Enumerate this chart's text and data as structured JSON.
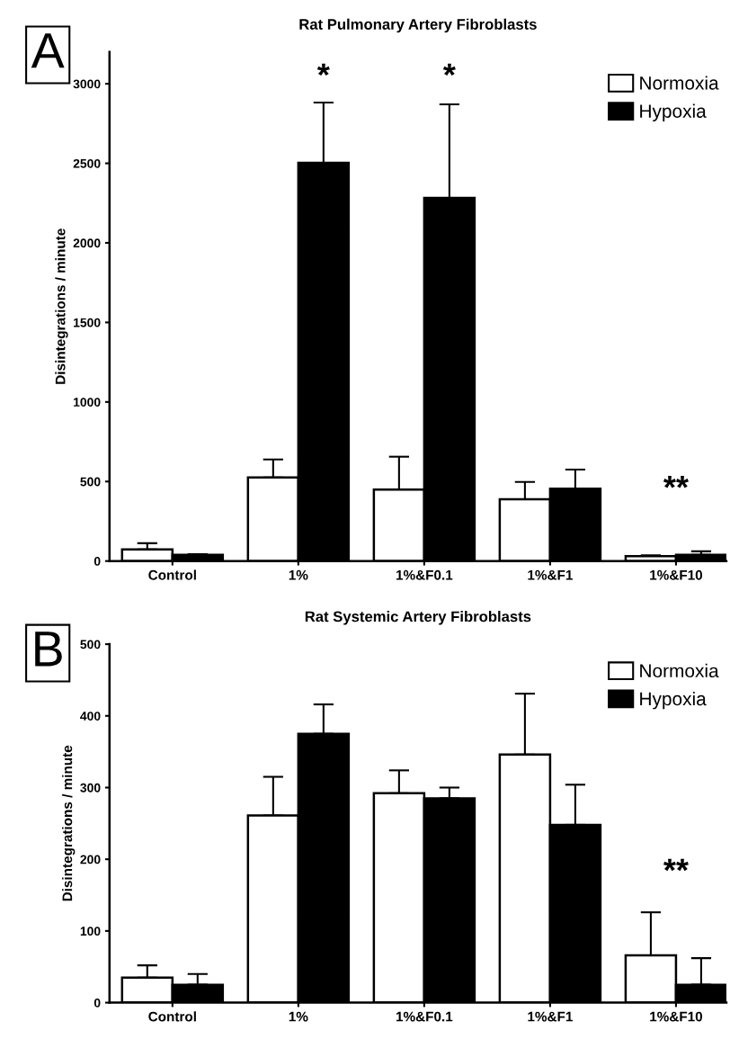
{
  "chart_data": [
    {
      "type": "bar",
      "title": "Rat Pulmonary Artery Fibroblasts",
      "ylabel": "Disintegrations / minute",
      "categories": [
        "Control",
        "1%",
        "1%&F0.1",
        "1%&F1",
        "1%&F10"
      ],
      "series": [
        {
          "name": "Normoxia",
          "color": "#ffffff",
          "values": [
            73,
            525,
            449,
            388,
            31
          ],
          "errors": [
            [
              73,
              112
            ],
            [
              525,
              639
            ],
            [
              449,
              656
            ],
            [
              388,
              497
            ],
            [
              31,
              36
            ]
          ]
        },
        {
          "name": "Hypoxia",
          "color": "#000000",
          "values": [
            39,
            2503,
            2282,
            455,
            39
          ],
          "errors": [
            [
              39,
              43
            ],
            [
              2503,
              2882
            ],
            [
              2282,
              2871
            ],
            [
              455,
              575
            ],
            [
              39,
              61
            ]
          ]
        }
      ],
      "ylim": [
        0,
        3200
      ],
      "yticks": [
        0,
        500,
        1000,
        1500,
        2000,
        2500,
        3000
      ],
      "legend": "top right",
      "grid": false,
      "annotations": [
        "A",
        "*",
        "*",
        "**"
      ]
    },
    {
      "type": "bar",
      "title": "Rat Systemic Artery Fibroblasts",
      "ylabel": "Disintegrations / minute",
      "categories": [
        "Control",
        "1%",
        "1%&F0.1",
        "1%&F1",
        "1%&F10"
      ],
      "series": [
        {
          "name": "Normoxia",
          "color": "#ffffff",
          "values": [
            35,
            261,
            292,
            346,
            66
          ],
          "errors": [
            [
              35,
              52
            ],
            [
              261,
              315
            ],
            [
              292,
              324
            ],
            [
              346,
              431
            ],
            [
              66,
              126
            ]
          ]
        },
        {
          "name": "Hypoxia",
          "color": "#000000",
          "values": [
            25,
            375,
            285,
            248,
            25
          ],
          "errors": [
            [
              25,
              40
            ],
            [
              375,
              416
            ],
            [
              285,
              300
            ],
            [
              248,
              304
            ],
            [
              25,
              62
            ]
          ]
        }
      ],
      "ylim": [
        0,
        500
      ],
      "yticks": [
        0,
        100,
        200,
        300,
        400,
        500
      ],
      "legend": "top right",
      "grid": false,
      "annotations": [
        "B",
        "**"
      ]
    }
  ]
}
